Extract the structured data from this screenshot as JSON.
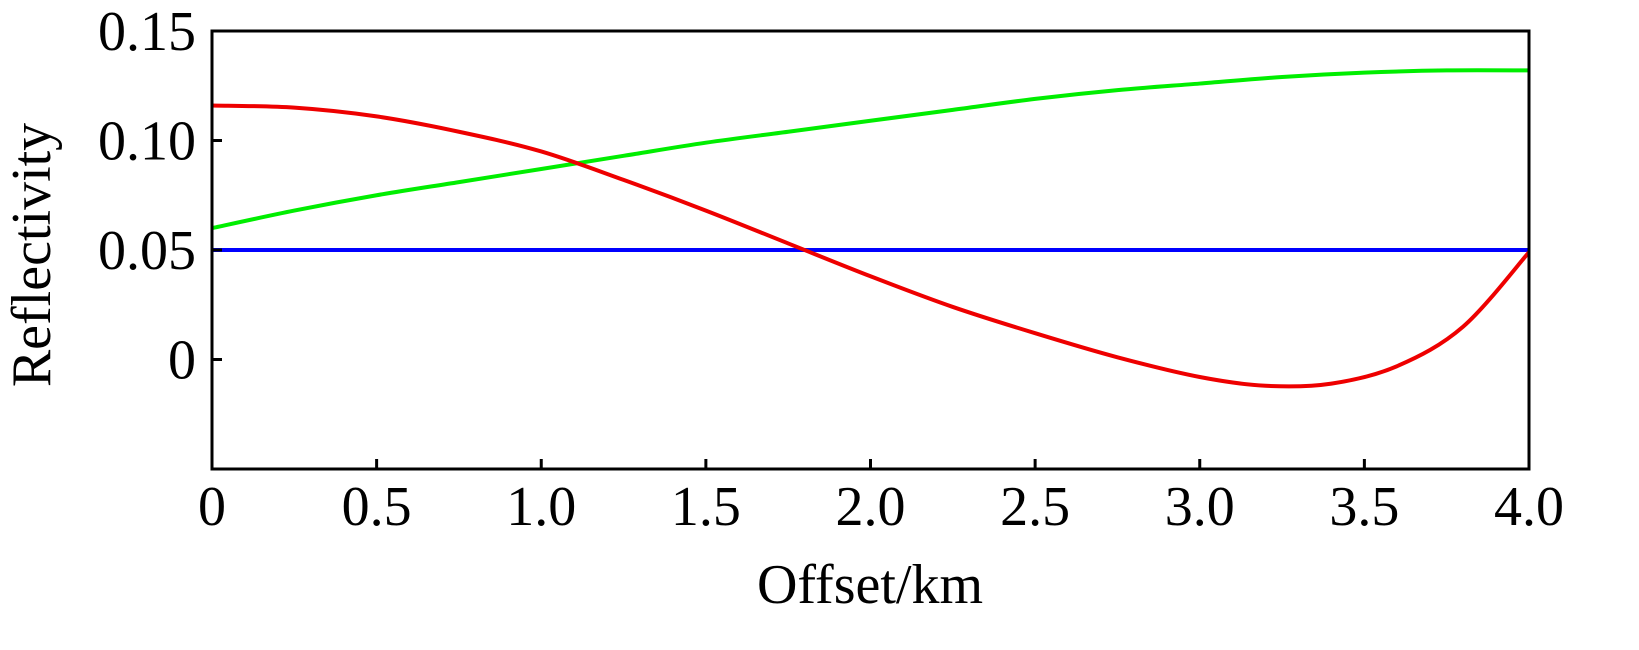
{
  "chart_data": {
    "type": "line",
    "title": "",
    "xlabel": "Offset/km",
    "ylabel": "Reflectivity",
    "xlim": [
      0,
      4.0
    ],
    "ylim": [
      -0.05,
      0.15
    ],
    "xticks": [
      0,
      0.5,
      1.0,
      1.5,
      2.0,
      2.5,
      3.0,
      3.5,
      4.0
    ],
    "xtick_labels": [
      "0",
      "0.5",
      "1.0",
      "1.5",
      "2.0",
      "2.5",
      "3.0",
      "3.5",
      "4.0"
    ],
    "yticks": [
      0,
      0.05,
      0.1,
      0.15
    ],
    "ytick_labels": [
      "0",
      "0.05",
      "0.10",
      "0.15"
    ],
    "grid": false,
    "legend": "none",
    "series": [
      {
        "color": "#0000ff",
        "x": [
          0,
          4.0
        ],
        "y": [
          0.05,
          0.05
        ]
      },
      {
        "color": "#00ee00",
        "x": [
          0,
          0.25,
          0.5,
          0.75,
          1.0,
          1.25,
          1.5,
          1.75,
          2.0,
          2.25,
          2.5,
          2.75,
          3.0,
          3.25,
          3.5,
          3.75,
          4.0
        ],
        "y": [
          0.06,
          0.068,
          0.075,
          0.081,
          0.087,
          0.093,
          0.099,
          0.104,
          0.109,
          0.114,
          0.119,
          0.123,
          0.126,
          0.129,
          0.131,
          0.132,
          0.132
        ]
      },
      {
        "color": "#ee0000",
        "x": [
          0,
          0.25,
          0.5,
          0.75,
          1.0,
          1.25,
          1.5,
          1.75,
          2.0,
          2.25,
          2.5,
          2.75,
          3.0,
          3.2,
          3.4,
          3.6,
          3.8,
          4.0
        ],
        "y": [
          0.116,
          0.115,
          0.111,
          0.104,
          0.095,
          0.082,
          0.068,
          0.053,
          0.038,
          0.024,
          0.012,
          0.001,
          -0.008,
          -0.012,
          -0.011,
          -0.003,
          0.015,
          0.049
        ]
      }
    ]
  }
}
